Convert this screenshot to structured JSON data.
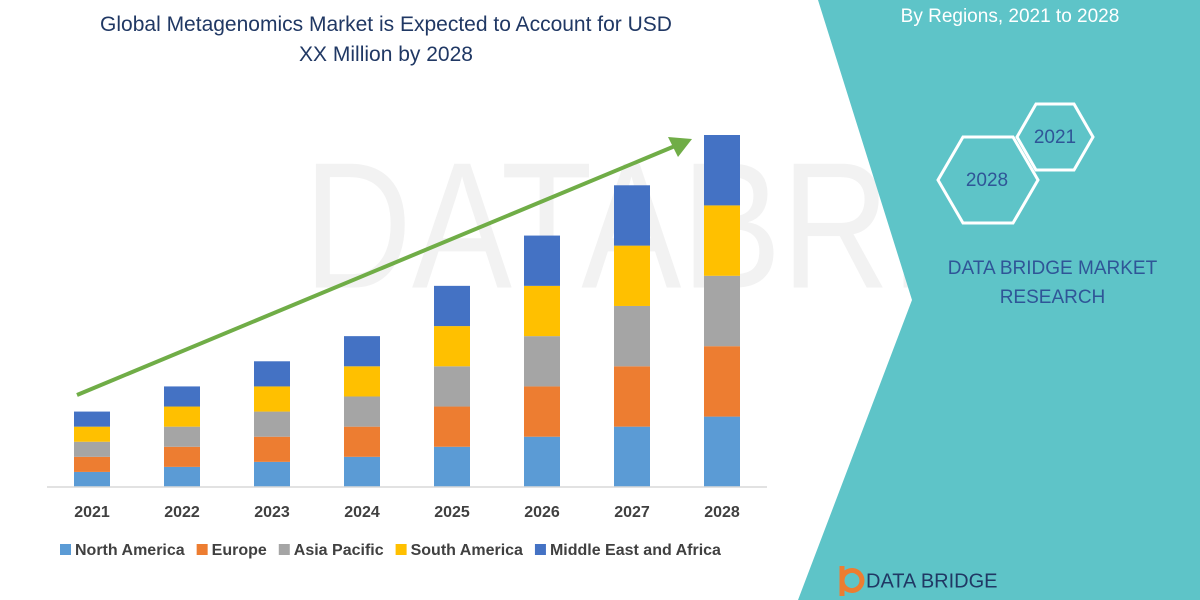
{
  "chart_data": {
    "type": "stacked_bar",
    "title": "Global Metagenomics Market is Expected to Account for USD XX Million by 2028",
    "categories": [
      "2021",
      "2022",
      "2023",
      "2024",
      "2025",
      "2026",
      "2027",
      "2028"
    ],
    "series": [
      {
        "name": "North America",
        "color": "#5b9bd5",
        "values": [
          15,
          20,
          25,
          30,
          40,
          50,
          60,
          70
        ]
      },
      {
        "name": "Europe",
        "color": "#ed7d31",
        "values": [
          15,
          20,
          25,
          30,
          40,
          50,
          60,
          70
        ]
      },
      {
        "name": "Asia Pacific",
        "color": "#a5a5a5",
        "values": [
          15,
          20,
          25,
          30,
          40,
          50,
          60,
          70
        ]
      },
      {
        "name": "South America",
        "color": "#ffc000",
        "values": [
          15,
          20,
          25,
          30,
          40,
          50,
          60,
          70
        ]
      },
      {
        "name": "Middle East and Africa",
        "color": "#4472c4",
        "values": [
          15,
          20,
          25,
          30,
          40,
          50,
          60,
          70
        ]
      }
    ],
    "legend": "bottom"
  },
  "side_panel": {
    "subtitle": "By Regions,  2021 to 2028",
    "hex_labels": [
      "2021",
      "2028"
    ],
    "brand": "DATA BRIDGE MARKET RESEARCH",
    "logo_text": "DATA BRIDGE"
  }
}
